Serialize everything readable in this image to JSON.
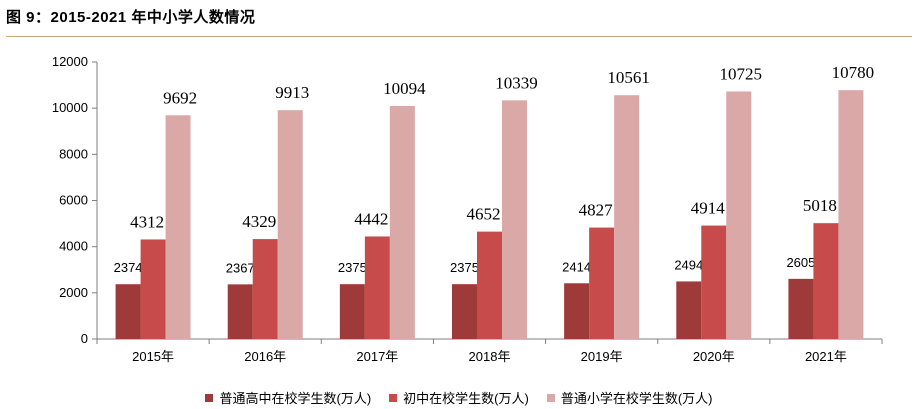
{
  "title": "图 9：2015-2021 年中小学人数情况",
  "chart_data": {
    "type": "bar",
    "title": "图 9：2015-2021 年中小学人数情况",
    "xlabel": "",
    "ylabel": "",
    "ylim": [
      0,
      12000
    ],
    "yticks": [
      "0",
      "2000",
      "4000",
      "6000",
      "8000",
      "10000",
      "12000"
    ],
    "categories": [
      "2015年",
      "2016年",
      "2017年",
      "2018年",
      "2019年",
      "2020年",
      "2021年"
    ],
    "series": [
      {
        "name": "普通高中在校学生数(万人)",
        "color": "#9e3a3a",
        "values": [
          2374,
          2367,
          2375,
          2375,
          2414,
          2494,
          2605
        ]
      },
      {
        "name": "初中在校学生数(万人)",
        "color": "#c74b4b",
        "values": [
          4312,
          4329,
          4442,
          4652,
          4827,
          4914,
          5018
        ]
      },
      {
        "name": "普通小学在校学生数(万人)",
        "color": "#dba8a8",
        "values": [
          9692,
          9913,
          10094,
          10339,
          10561,
          10725,
          10780
        ]
      }
    ]
  }
}
